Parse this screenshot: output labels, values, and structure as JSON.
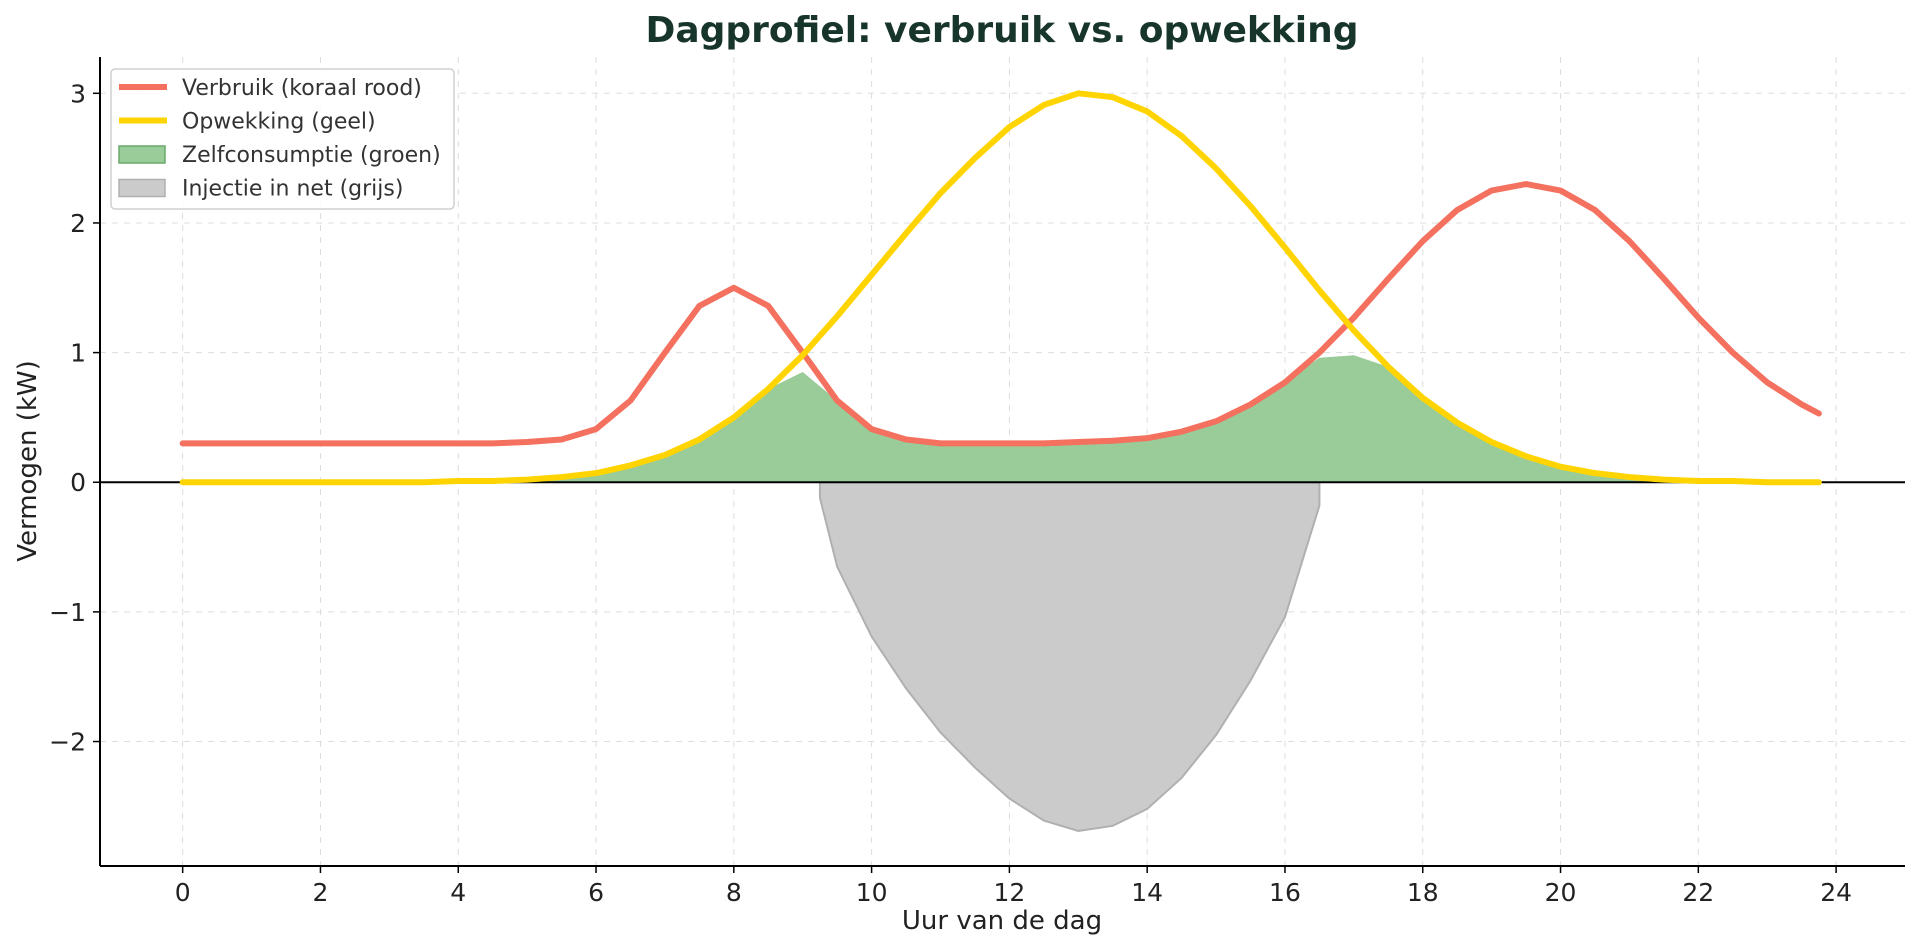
{
  "chart_data": {
    "type": "line",
    "title": "Dagprofiel: verbruik vs. opwekking",
    "xlabel": "Uur van de dag",
    "ylabel": "Vermogen (kW)",
    "xlim": [
      -1.2,
      25
    ],
    "ylim": [
      -2.96,
      3.28
    ],
    "xticks": [
      0,
      2,
      4,
      6,
      8,
      10,
      12,
      14,
      16,
      18,
      20,
      22,
      24
    ],
    "yticks": [
      -2,
      -1,
      0,
      1,
      2,
      3
    ],
    "ytick_labels": [
      "−2",
      "−1",
      "0",
      "1",
      "2",
      "3"
    ],
    "grid": true,
    "legend_position": "top-left",
    "x": [
      0,
      0.5,
      1,
      1.5,
      2,
      2.5,
      3,
      3.5,
      4,
      4.5,
      5,
      5.5,
      6,
      6.5,
      7,
      7.5,
      8,
      8.5,
      9,
      9.5,
      10,
      10.5,
      11,
      11.5,
      12,
      12.5,
      13,
      13.5,
      14,
      14.5,
      15,
      15.5,
      16,
      16.5,
      17,
      17.5,
      18,
      18.5,
      19,
      19.5,
      20,
      20.5,
      21,
      21.5,
      22,
      22.5,
      23,
      23.5,
      23.75
    ],
    "series": [
      {
        "name": "Verbruik (koraal rood)",
        "color": "#f4705f",
        "kind": "line",
        "values": [
          0.3,
          0.3,
          0.3,
          0.3,
          0.3,
          0.3,
          0.3,
          0.3,
          0.3,
          0.3,
          0.31,
          0.33,
          0.41,
          0.63,
          1.0,
          1.36,
          1.5,
          1.36,
          1.0,
          0.63,
          0.41,
          0.33,
          0.3,
          0.3,
          0.3,
          0.3,
          0.31,
          0.32,
          0.34,
          0.39,
          0.47,
          0.6,
          0.77,
          1.0,
          1.27,
          1.57,
          1.86,
          2.1,
          2.25,
          2.3,
          2.25,
          2.1,
          1.86,
          1.57,
          1.27,
          1.0,
          0.77,
          0.6,
          0.53
        ]
      },
      {
        "name": "Opwekking (geel)",
        "color": "#ffd400",
        "kind": "line",
        "values": [
          0.0,
          0.0,
          0.0,
          0.0,
          0.0,
          0.0,
          0.0,
          0.0,
          0.01,
          0.01,
          0.02,
          0.04,
          0.07,
          0.13,
          0.21,
          0.33,
          0.5,
          0.72,
          0.98,
          1.28,
          1.6,
          1.92,
          2.23,
          2.5,
          2.74,
          2.91,
          3.0,
          2.97,
          2.86,
          2.67,
          2.42,
          2.13,
          1.81,
          1.48,
          1.17,
          0.89,
          0.65,
          0.46,
          0.31,
          0.2,
          0.12,
          0.07,
          0.04,
          0.02,
          0.01,
          0.01,
          0.0,
          0.0,
          0.0
        ]
      },
      {
        "name": "Zelfconsumptie (groen)",
        "color": "#99cc99",
        "kind": "fill",
        "values": [
          0.0,
          0.0,
          0.0,
          0.0,
          0.0,
          0.0,
          0.0,
          0.0,
          0.01,
          0.01,
          0.02,
          0.04,
          0.07,
          0.13,
          0.21,
          0.33,
          0.5,
          0.72,
          0.85,
          0.63,
          0.41,
          0.33,
          0.3,
          0.3,
          0.3,
          0.3,
          0.31,
          0.32,
          0.34,
          0.39,
          0.47,
          0.6,
          0.77,
          0.96,
          0.98,
          0.89,
          0.65,
          0.46,
          0.31,
          0.2,
          0.12,
          0.07,
          0.04,
          0.02,
          0.01,
          0.01,
          0.0,
          0.0,
          0.0
        ]
      },
      {
        "name": "Injectie in net (grijs)",
        "color": "#cbcbcb",
        "kind": "fill",
        "x": [
          9.25,
          9.5,
          10,
          10.5,
          11,
          11.5,
          12,
          12.5,
          13,
          13.5,
          14,
          14.5,
          15,
          15.5,
          16,
          16.5
        ],
        "values": [
          -0.12,
          -0.65,
          -1.19,
          -1.59,
          -1.93,
          -2.2,
          -2.44,
          -2.61,
          -2.69,
          -2.65,
          -2.52,
          -2.28,
          -1.95,
          -1.53,
          -1.04,
          -0.18
        ]
      }
    ]
  }
}
